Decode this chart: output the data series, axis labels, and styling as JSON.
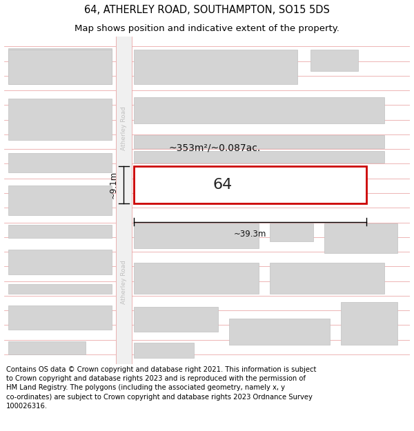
{
  "title": "64, ATHERLEY ROAD, SOUTHAMPTON, SO15 5DS",
  "subtitle": "Map shows position and indicative extent of the property.",
  "footer_line1": "Contains OS data © Crown copyright and database right 2021. This information is subject",
  "footer_line2": "to Crown copyright and database rights 2023 and is reproduced with the permission of",
  "footer_line3": "HM Land Registry. The polygons (including the associated geometry, namely x, y",
  "footer_line4": "co-ordinates) are subject to Crown copyright and database rights 2023 Ordnance Survey",
  "footer_line5": "100026316.",
  "bg_color": "#ffffff",
  "map_bg": "#f7f7f7",
  "road_stripe_color": "#e8a0a0",
  "building_fill": "#d4d4d4",
  "building_edge": "#c0c0c0",
  "highlight_fill": "#ffffff",
  "highlight_edge": "#cc0000",
  "road_label_color": "#c0c0c0",
  "area_text": "~353m²/~0.087ac.",
  "label_64": "64",
  "dim_width": "~39.3m",
  "dim_height": "~9.1m",
  "title_fontsize": 10.5,
  "subtitle_fontsize": 9.5,
  "footer_fontsize": 7.2
}
